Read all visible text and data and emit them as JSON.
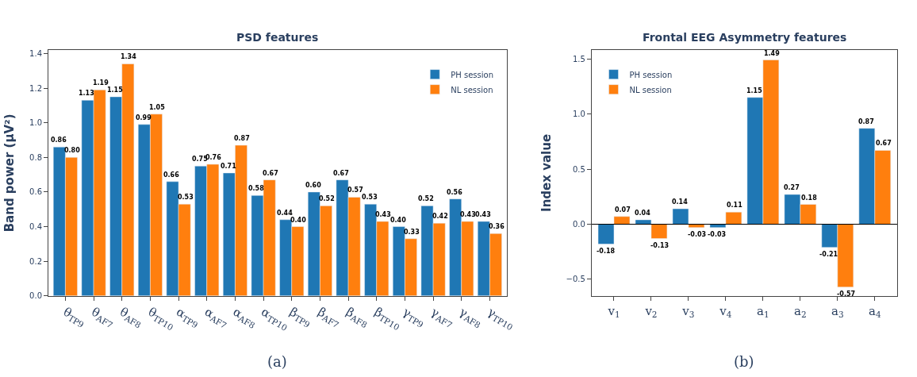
{
  "chart_data": [
    {
      "type": "bar",
      "title": "PSD features",
      "ylabel": "Band power (μV²)",
      "categories": [
        "θ$_{TP9}$",
        "θ$_{AF7}$",
        "θ$_{AF8}$",
        "θ$_{TP10}$",
        "α$_{TP9}$",
        "α$_{AF7}$",
        "α$_{AF8}$",
        "α$_{TP10}$",
        "β$_{TP9}$",
        "β$_{AF7}$",
        "β$_{AF8}$",
        "β$_{TP10}$",
        "γ$_{TP9}$",
        "γ$_{AF7}$",
        "γ$_{AF8}$",
        "γ$_{TP10}$"
      ],
      "series": [
        {
          "name": "PH session",
          "color": "#1f77b4",
          "values": [
            0.86,
            1.13,
            1.15,
            0.99,
            0.66,
            0.75,
            0.71,
            0.58,
            0.44,
            0.6,
            0.67,
            0.53,
            0.4,
            0.52,
            0.56,
            0.43
          ],
          "value_labels": [
            "0.86",
            "1.13",
            "1.15",
            "0.99",
            "0.66",
            "0.75",
            "0.71",
            "0.58",
            "0.44",
            "0.60",
            "0.67",
            "0.53",
            "0.40",
            "0.52",
            "0.56",
            "0.43"
          ]
        },
        {
          "name": "NL session",
          "color": "#ff7f0e",
          "values": [
            0.8,
            1.19,
            1.34,
            1.05,
            0.53,
            0.76,
            0.87,
            0.67,
            0.4,
            0.52,
            0.57,
            0.43,
            0.33,
            0.42,
            0.43,
            0.36
          ],
          "value_labels": [
            "0.80",
            "1.19",
            "1.34",
            "1.05",
            "0.53",
            "0.76",
            "0.87",
            "0.67",
            "0.40",
            "0.52",
            "0.57",
            "0.43",
            "0.33",
            "0.42",
            "0.43",
            "0.36"
          ]
        }
      ],
      "ylim": [
        0,
        1.42
      ],
      "yticks": [
        {
          "value": 0,
          "label": "0.0"
        },
        {
          "value": 0.2,
          "label": "0.2"
        },
        {
          "value": 0.4,
          "label": "0.4"
        },
        {
          "value": 0.6,
          "label": "0.6"
        },
        {
          "value": 0.8,
          "label": "0.8"
        },
        {
          "value": 1.0,
          "label": "1.0"
        },
        {
          "value": 1.2,
          "label": "1.2"
        },
        {
          "value": 1.4,
          "label": "1.4"
        }
      ],
      "legend": "top right",
      "annotations": [
        "(a)"
      ]
    },
    {
      "type": "bar",
      "title": "Frontal EEG Asymmetry features",
      "ylabel": "Index value",
      "categories": [
        "v$_{1}$",
        "v$_{2}$",
        "v$_{3}$",
        "v$_{4}$",
        "a$_{1}$",
        "a$_{2}$",
        "a$_{3}$",
        "a$_{4}$"
      ],
      "series": [
        {
          "name": "PH session",
          "color": "#1f77b4",
          "values": [
            -0.18,
            0.04,
            0.14,
            -0.03,
            1.15,
            0.27,
            -0.21,
            0.87
          ]
        },
        {
          "name": "NL session",
          "color": "#ff7f0e",
          "values": [
            0.07,
            -0.13,
            -0.03,
            0.11,
            1.49,
            0.18,
            -0.57,
            0.67
          ]
        }
      ],
      "ylim": [
        -0.65,
        1.58
      ],
      "yticks": [
        {
          "value": -0.5,
          "label": "−0.5"
        },
        {
          "value": 0,
          "label": "0.0"
        },
        {
          "value": 0.5,
          "label": "0.5"
        },
        {
          "value": 1.0,
          "label": "1.0"
        },
        {
          "value": 1.5,
          "label": "1.5"
        }
      ],
      "ref_lines": [
        {
          "axis": "y",
          "value": 0,
          "color": "#000000"
        }
      ],
      "data_labels": true,
      "legend": "top left",
      "annotations": [
        "(b)"
      ]
    }
  ]
}
